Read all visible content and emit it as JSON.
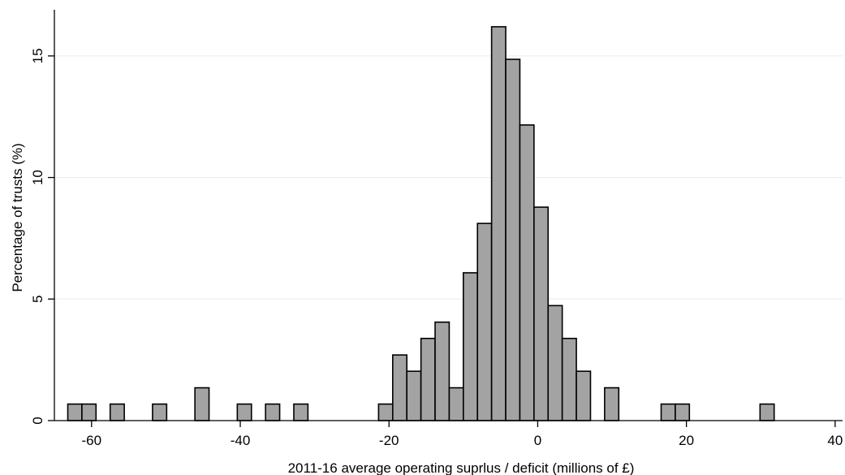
{
  "chart_data": {
    "type": "bar",
    "title": "",
    "xlabel": "2011-16 average operating suprlus / deficit (millions of £)",
    "ylabel": "Percentage of trusts (%)",
    "xlim": [
      -65,
      41
    ],
    "ylim": [
      0,
      16.9
    ],
    "xticks": [
      -60,
      -40,
      -20,
      0,
      20,
      40
    ],
    "yticks": [
      0,
      5,
      10,
      15
    ],
    "bin_width": 1.9,
    "grid": true,
    "bars": [
      {
        "x0": -63.2,
        "value": 0.68
      },
      {
        "x0": -61.3,
        "value": 0.68
      },
      {
        "x0": -57.5,
        "value": 0.68
      },
      {
        "x0": -51.8,
        "value": 0.68
      },
      {
        "x0": -46.1,
        "value": 1.35
      },
      {
        "x0": -40.4,
        "value": 0.68
      },
      {
        "x0": -36.6,
        "value": 0.68
      },
      {
        "x0": -32.8,
        "value": 0.68
      },
      {
        "x0": -21.4,
        "value": 0.68
      },
      {
        "x0": -19.5,
        "value": 2.7
      },
      {
        "x0": -17.6,
        "value": 2.03
      },
      {
        "x0": -15.7,
        "value": 3.38
      },
      {
        "x0": -13.8,
        "value": 4.05
      },
      {
        "x0": -11.9,
        "value": 1.35
      },
      {
        "x0": -10.0,
        "value": 6.08
      },
      {
        "x0": -8.1,
        "value": 8.11
      },
      {
        "x0": -6.2,
        "value": 16.2
      },
      {
        "x0": -4.3,
        "value": 14.86
      },
      {
        "x0": -2.4,
        "value": 12.16
      },
      {
        "x0": -0.5,
        "value": 8.78
      },
      {
        "x0": 1.4,
        "value": 4.73
      },
      {
        "x0": 3.3,
        "value": 3.38
      },
      {
        "x0": 5.2,
        "value": 2.03
      },
      {
        "x0": 9.0,
        "value": 1.35
      },
      {
        "x0": 16.6,
        "value": 0.68
      },
      {
        "x0": 18.5,
        "value": 0.68
      },
      {
        "x0": 29.9,
        "value": 0.68
      }
    ]
  }
}
